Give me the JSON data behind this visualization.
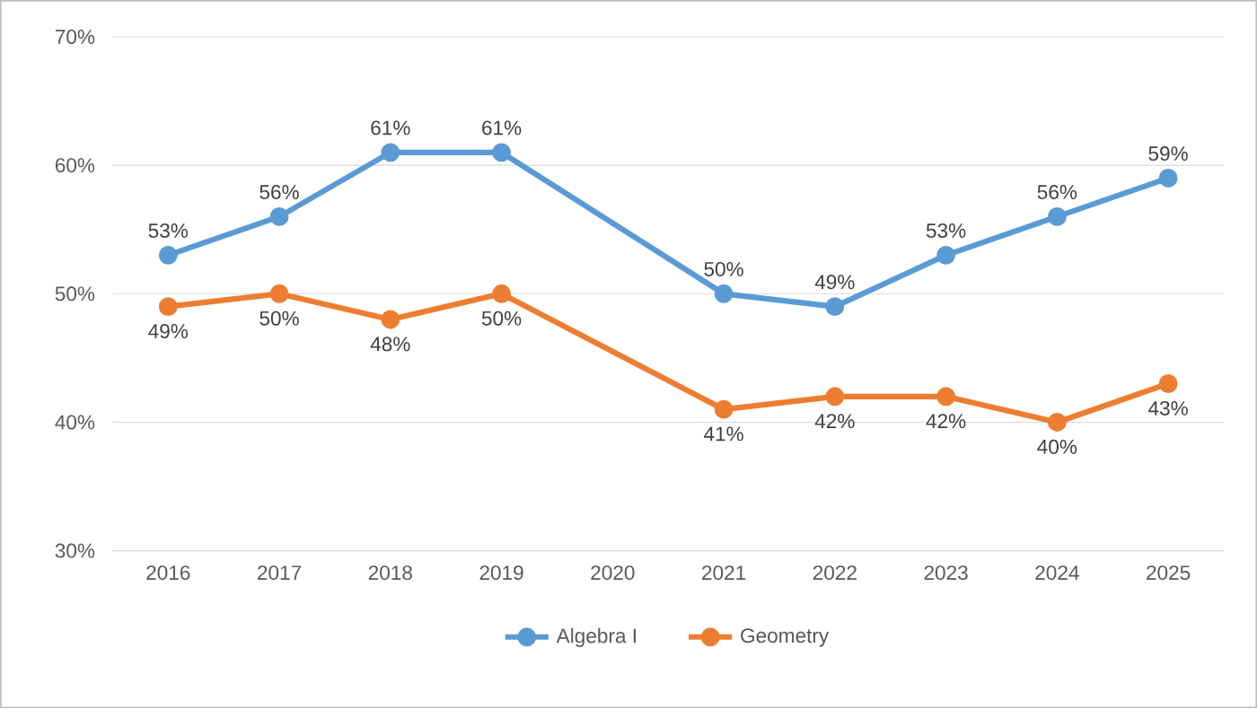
{
  "chart_data": {
    "type": "line",
    "categories": [
      "2016",
      "2017",
      "2018",
      "2019",
      "2020",
      "2021",
      "2022",
      "2023",
      "2024",
      "2025"
    ],
    "series": [
      {
        "name": "Algebra I",
        "color": "#5b9bd5",
        "values": [
          53,
          56,
          61,
          61,
          null,
          50,
          49,
          53,
          56,
          59
        ],
        "value_labels": [
          "53%",
          "56%",
          "61%",
          "61%",
          null,
          "50%",
          "49%",
          "53%",
          "56%",
          "59%"
        ]
      },
      {
        "name": "Geometry",
        "color": "#ed7d31",
        "values": [
          49,
          50,
          48,
          50,
          null,
          41,
          42,
          42,
          40,
          43
        ],
        "value_labels": [
          "49%",
          "50%",
          "48%",
          "50%",
          null,
          "41%",
          "42%",
          "42%",
          "40%",
          "43%"
        ]
      }
    ],
    "ylim": [
      30,
      70
    ],
    "yticks": [
      {
        "value": 30,
        "label": "30%"
      },
      {
        "value": 40,
        "label": "40%"
      },
      {
        "value": 50,
        "label": "50%"
      },
      {
        "value": 60,
        "label": "60%"
      },
      {
        "value": 70,
        "label": "70%"
      }
    ],
    "grid": "y",
    "legend": "bottom",
    "marker": "circle",
    "line_style": "solid"
  }
}
